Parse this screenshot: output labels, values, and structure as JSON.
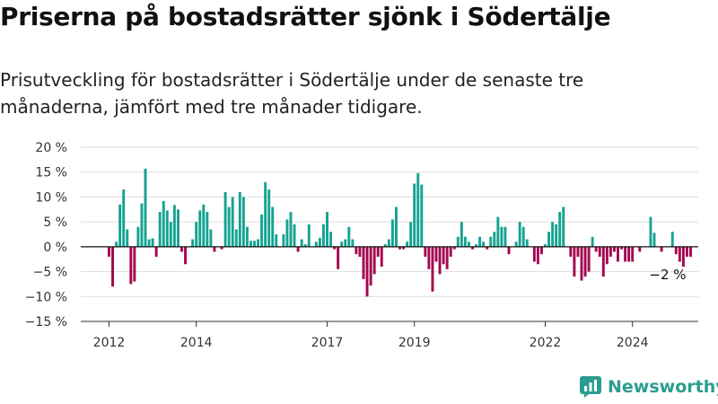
{
  "title": "Priserna på bostadsrätter sjönk i Södertälje",
  "subtitle": "Prisutveckling för bostadsrätter i Södertälje under de senaste tre månaderna, jämfört med tre månader tidigare.",
  "brand": {
    "name": "Newsworthy"
  },
  "colors": {
    "positive": "#14a391",
    "negative": "#a3064f",
    "grid": "#dddddd",
    "axis": "#333333"
  },
  "chart_data": {
    "type": "bar",
    "x_start": "2012-01",
    "ylim": [
      -15,
      20
    ],
    "y_ticks": [
      20,
      15,
      10,
      5,
      0,
      -5,
      -10,
      -15
    ],
    "y_tick_labels": [
      "20 %",
      "15 %",
      "10 %",
      "5 %",
      "0 %",
      "−5 %",
      "−10 %",
      "−15 %"
    ],
    "x_tick_labels": [
      {
        "label": "2012",
        "x": "2012-01"
      },
      {
        "label": "2014",
        "x": "2014-01"
      },
      {
        "label": "2017",
        "x": "2017-01"
      },
      {
        "label": "2019",
        "x": "2019-01"
      },
      {
        "label": "2022",
        "x": "2022-01"
      },
      {
        "label": "2024",
        "x": "2024-01"
      }
    ],
    "annotation": "−2 %",
    "values": [
      -2,
      -8,
      1,
      8.5,
      11.5,
      3.5,
      -7.5,
      -7,
      4,
      8.7,
      15.7,
      1.5,
      1.7,
      -2,
      7,
      9.2,
      7.3,
      5,
      8.4,
      7.5,
      -1,
      -3.5,
      0,
      1.5,
      5,
      7.3,
      8.5,
      7,
      3.5,
      -1,
      0,
      -0.5,
      11,
      8,
      10,
      3.5,
      11,
      10,
      4,
      1.2,
      1.2,
      1.5,
      6.5,
      13,
      11.5,
      8,
      2.5,
      0,
      2.5,
      5.5,
      7,
      4.5,
      -1,
      1.5,
      0.5,
      4.5,
      0,
      1,
      1.8,
      4.5,
      7,
      3,
      -0.5,
      -4.5,
      1,
      1.5,
      4,
      1.5,
      -1.5,
      -2,
      -6.5,
      -10,
      -7.8,
      -5.5,
      -2,
      -4,
      0.5,
      1.5,
      5.5,
      8,
      -0.5,
      -0.5,
      1,
      5,
      12.7,
      14.8,
      12.5,
      -2,
      -4.5,
      -9,
      -3,
      -5.5,
      -3.5,
      -4.5,
      -2,
      -0.5,
      2,
      5,
      2,
      1,
      -0.5,
      0.5,
      2,
      1,
      -0.5,
      2,
      3,
      6,
      4,
      4,
      -1.5,
      0,
      1,
      5,
      4,
      1.5,
      0,
      -3,
      -3.5,
      -1.5,
      0.5,
      3,
      5,
      4.5,
      7,
      8,
      0,
      -2,
      -6,
      -2,
      -6.8,
      -6,
      -5,
      2,
      -1,
      -2,
      -6,
      -3.5,
      -2,
      -1,
      -3,
      -0.5,
      -3,
      -3,
      -3,
      0,
      -1,
      0,
      0,
      6,
      2.8,
      0,
      -1,
      0,
      0,
      3,
      -1.5,
      -3,
      -4,
      -2,
      -2
    ]
  }
}
